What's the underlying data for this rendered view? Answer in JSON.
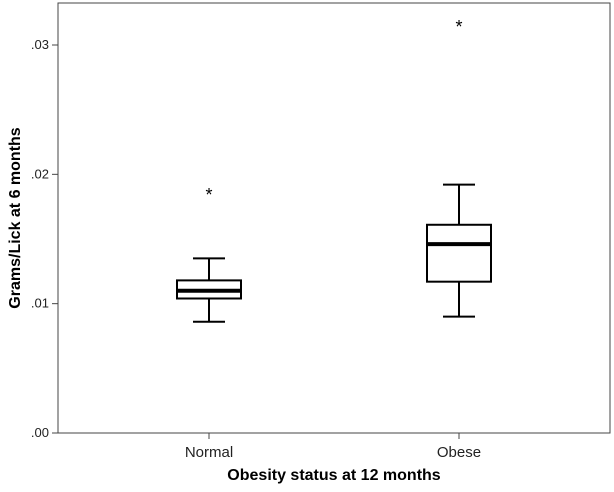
{
  "chart_data": {
    "type": "box",
    "xlabel": "Obesity status at 12 months",
    "ylabel": "Grams/Lick at 6 months",
    "ylim": [
      0,
      0.0335
    ],
    "yticks": [
      {
        "value": 0.0,
        "label": ".00"
      },
      {
        "value": 0.01,
        "label": ".01"
      },
      {
        "value": 0.02,
        "label": ".02"
      },
      {
        "value": 0.03,
        "label": ".03"
      }
    ],
    "grid": false,
    "boxes": [
      {
        "category": "Normal",
        "min": 0.0086,
        "q1": 0.0104,
        "median": 0.011,
        "q3": 0.0118,
        "max": 0.0135,
        "outliers": [
          {
            "value": 0.0187,
            "marker": "*"
          }
        ]
      },
      {
        "category": "Obese",
        "min": 0.009,
        "q1": 0.0117,
        "median": 0.0146,
        "q3": 0.0161,
        "max": 0.0192,
        "outliers": [
          {
            "value": 0.0317,
            "marker": "*"
          }
        ]
      }
    ]
  }
}
